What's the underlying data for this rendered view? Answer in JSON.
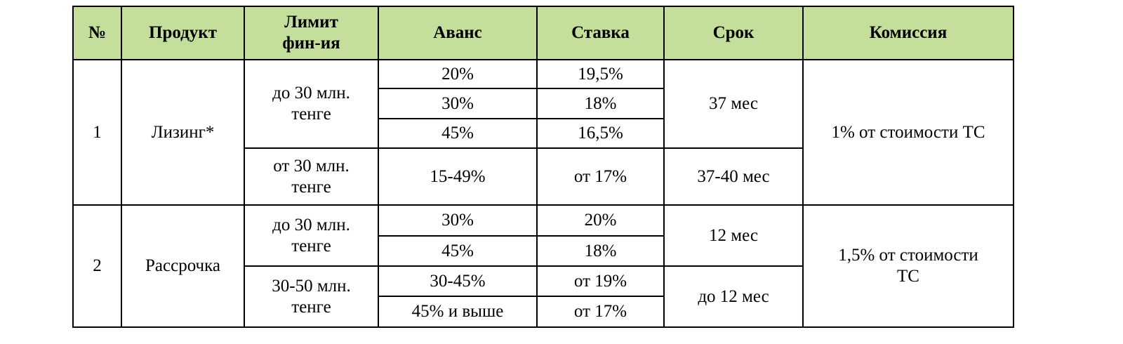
{
  "table": {
    "header": [
      "№",
      "Продукт",
      "Лимит\nфин-ия",
      "Аванс",
      "Ставка",
      "Срок",
      "Комиссия"
    ],
    "rows": [
      [
        "1",
        "Лизинг*",
        "до 30 млн.\nтенге",
        "20%",
        "19,5%",
        "37 мес",
        "1% от стоимости ТС"
      ],
      [
        "30%",
        "18%"
      ],
      [
        "45%",
        "16,5%"
      ],
      [
        "от 30 млн.\nтенге",
        "15-49%",
        "от 17%",
        "37-40 мес"
      ],
      [
        "2",
        "Рассрочка",
        "до 30 млн.\nтенге",
        "30%",
        "20%",
        "12 мес",
        "1,5% от стоимости\nТС"
      ],
      [
        "45%",
        "18%"
      ],
      [
        "30-50 млн.\nтенге",
        "30-45%",
        "от 19%",
        "до 12 мес"
      ],
      [
        "45% и выше",
        "от 17%"
      ]
    ]
  }
}
